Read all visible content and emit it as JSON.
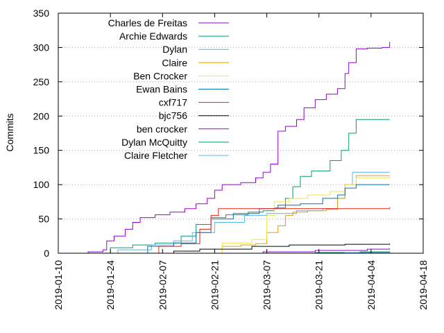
{
  "chart_data": {
    "type": "line",
    "title": "",
    "xlabel": "",
    "ylabel": "Commits",
    "xlim": [
      "2019-01-10",
      "2019-04-18"
    ],
    "ylim": [
      0,
      350
    ],
    "x_ticks": [
      "2019-01-10",
      "2019-01-24",
      "2019-02-07",
      "2019-02-21",
      "2019-03-07",
      "2019-03-21",
      "2019-04-04",
      "2019-04-18"
    ],
    "y_ticks": [
      "0",
      "50",
      "100",
      "150",
      "200",
      "250",
      "300",
      "350"
    ],
    "grid": "horizontal dotted",
    "legend_position": "top-left",
    "series": [
      {
        "name": "Charles de Freitas",
        "color": "#9400d3",
        "points": [
          [
            "2019-01-17",
            0
          ],
          [
            "2019-01-18",
            2
          ],
          [
            "2019-01-22",
            5
          ],
          [
            "2019-01-23",
            18
          ],
          [
            "2019-01-25",
            25
          ],
          [
            "2019-01-28",
            35
          ],
          [
            "2019-01-30",
            45
          ],
          [
            "2019-02-01",
            52
          ],
          [
            "2019-02-05",
            56
          ],
          [
            "2019-02-09",
            60
          ],
          [
            "2019-02-13",
            65
          ],
          [
            "2019-02-16",
            72
          ],
          [
            "2019-02-19",
            80
          ],
          [
            "2019-02-21",
            92
          ],
          [
            "2019-02-23",
            100
          ],
          [
            "2019-02-28",
            103
          ],
          [
            "2019-03-04",
            110
          ],
          [
            "2019-03-06",
            118
          ],
          [
            "2019-03-08",
            130
          ],
          [
            "2019-03-10",
            178
          ],
          [
            "2019-03-12",
            185
          ],
          [
            "2019-03-15",
            195
          ],
          [
            "2019-03-17",
            212
          ],
          [
            "2019-03-20",
            224
          ],
          [
            "2019-03-23",
            232
          ],
          [
            "2019-03-26",
            240
          ],
          [
            "2019-03-28",
            262
          ],
          [
            "2019-03-29",
            278
          ],
          [
            "2019-03-31",
            298
          ],
          [
            "2019-04-03",
            299
          ],
          [
            "2019-04-07",
            300
          ],
          [
            "2019-04-09",
            308
          ]
        ]
      },
      {
        "name": "Archie Edwards",
        "color": "#009e73",
        "points": [
          [
            "2019-01-21",
            0
          ],
          [
            "2019-01-24",
            8
          ],
          [
            "2019-01-30",
            12
          ],
          [
            "2019-02-05",
            15
          ],
          [
            "2019-02-12",
            25
          ],
          [
            "2019-02-16",
            42
          ],
          [
            "2019-02-20",
            52
          ],
          [
            "2019-02-24",
            56
          ],
          [
            "2019-03-02",
            60
          ],
          [
            "2019-03-06",
            62
          ],
          [
            "2019-03-09",
            66
          ],
          [
            "2019-03-12",
            80
          ],
          [
            "2019-03-14",
            97
          ],
          [
            "2019-03-16",
            112
          ],
          [
            "2019-03-19",
            120
          ],
          [
            "2019-03-24",
            135
          ],
          [
            "2019-03-27",
            150
          ],
          [
            "2019-03-29",
            175
          ],
          [
            "2019-03-31",
            195
          ],
          [
            "2019-04-09",
            195
          ]
        ]
      },
      {
        "name": "Dylan",
        "color": "#56b4e9",
        "points": [
          [
            "2019-01-23",
            0
          ],
          [
            "2019-01-26",
            5
          ],
          [
            "2019-02-04",
            12
          ],
          [
            "2019-02-10",
            18
          ],
          [
            "2019-02-15",
            30
          ],
          [
            "2019-02-21",
            45
          ],
          [
            "2019-03-01",
            55
          ],
          [
            "2019-03-07",
            58
          ],
          [
            "2019-03-15",
            62
          ],
          [
            "2019-03-22",
            65
          ],
          [
            "2019-03-26",
            80
          ],
          [
            "2019-03-28",
            100
          ],
          [
            "2019-03-30",
            118
          ],
          [
            "2019-04-09",
            118
          ]
        ]
      },
      {
        "name": "Claire",
        "color": "#e69f00",
        "points": [
          [
            "2019-02-21",
            0
          ],
          [
            "2019-02-23",
            10
          ],
          [
            "2019-02-28",
            12
          ],
          [
            "2019-03-04",
            14
          ],
          [
            "2019-03-07",
            30
          ],
          [
            "2019-03-10",
            40
          ],
          [
            "2019-03-12",
            55
          ],
          [
            "2019-03-14",
            60
          ],
          [
            "2019-03-18",
            62
          ],
          [
            "2019-03-23",
            64
          ],
          [
            "2019-03-26",
            80
          ],
          [
            "2019-03-28",
            100
          ],
          [
            "2019-03-31",
            113
          ],
          [
            "2019-04-09",
            113
          ]
        ]
      },
      {
        "name": "Ben Crocker",
        "color": "#f0e442",
        "points": [
          [
            "2019-02-18",
            0
          ],
          [
            "2019-02-23",
            15
          ],
          [
            "2019-03-03",
            20
          ],
          [
            "2019-03-07",
            55
          ],
          [
            "2019-03-09",
            75
          ],
          [
            "2019-03-13",
            80
          ],
          [
            "2019-03-18",
            85
          ],
          [
            "2019-03-24",
            90
          ],
          [
            "2019-03-28",
            100
          ],
          [
            "2019-03-31",
            110
          ],
          [
            "2019-04-09",
            112
          ]
        ]
      },
      {
        "name": "Ewan Bains",
        "color": "#0072b2",
        "points": [
          [
            "2019-01-28",
            0
          ],
          [
            "2019-02-03",
            10
          ],
          [
            "2019-02-10",
            15
          ],
          [
            "2019-02-16",
            30
          ],
          [
            "2019-02-20",
            50
          ],
          [
            "2019-02-26",
            58
          ],
          [
            "2019-03-05",
            65
          ],
          [
            "2019-03-10",
            70
          ],
          [
            "2019-03-16",
            72
          ],
          [
            "2019-03-22",
            80
          ],
          [
            "2019-03-26",
            85
          ],
          [
            "2019-03-28",
            95
          ],
          [
            "2019-03-31",
            100
          ],
          [
            "2019-04-09",
            100
          ]
        ]
      },
      {
        "name": "cxf717",
        "color": "#e51e10",
        "points": [
          [
            "2019-02-01",
            0
          ],
          [
            "2019-02-06",
            10
          ],
          [
            "2019-02-12",
            14
          ],
          [
            "2019-02-17",
            35
          ],
          [
            "2019-02-20",
            55
          ],
          [
            "2019-02-22",
            65
          ],
          [
            "2019-04-09",
            67
          ]
        ]
      },
      {
        "name": "bjc756",
        "color": "#000000",
        "points": [
          [
            "2019-02-03",
            0
          ],
          [
            "2019-02-10",
            3
          ],
          [
            "2019-02-17",
            6
          ],
          [
            "2019-03-03",
            10
          ],
          [
            "2019-03-13",
            12
          ],
          [
            "2019-03-28",
            13
          ],
          [
            "2019-04-09",
            14
          ]
        ]
      },
      {
        "name": "ben crocker",
        "color": "#9400d3",
        "points": [
          [
            "2019-02-20",
            0
          ],
          [
            "2019-03-06",
            2
          ],
          [
            "2019-03-20",
            4
          ],
          [
            "2019-04-03",
            6
          ],
          [
            "2019-04-09",
            7
          ]
        ]
      },
      {
        "name": "Dylan McQuitty",
        "color": "#009e73",
        "points": [
          [
            "2019-03-01",
            0
          ],
          [
            "2019-03-20",
            1
          ],
          [
            "2019-04-01",
            2
          ],
          [
            "2019-04-09",
            3
          ]
        ]
      },
      {
        "name": "Claire Fletcher",
        "color": "#56b4e9",
        "points": [
          [
            "2019-03-10",
            0
          ],
          [
            "2019-03-28",
            1
          ],
          [
            "2019-04-09",
            2
          ]
        ]
      }
    ]
  }
}
